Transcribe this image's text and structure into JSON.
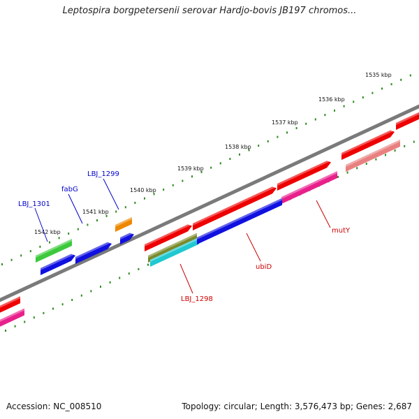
{
  "title": "Leptospira borgpetersenii serovar Hardjo-bovis JB197 chromos...",
  "footer": {
    "accession": "Accession: NC_008510",
    "summary": "Topology: circular; Length: 3,576,473 bp; Genes: 2,687"
  },
  "ruler": {
    "labels": [
      "1535 kbp",
      "1536 kbp",
      "1537 kbp",
      "1538 kbp",
      "1539 kbp",
      "1540 kbp",
      "1541 kbp",
      "1542 kbp"
    ]
  },
  "genes": {
    "upper": [
      "LBJ_1299",
      "fabG",
      "LBJ_1301"
    ],
    "lower": [
      "mutY",
      "ubiD",
      "LBJ_1298"
    ]
  },
  "colors": {
    "backbone": "#7a7a7a",
    "tick": "#2e8b1f",
    "red": "#ee0000",
    "pink": "#e8208c",
    "salmon": "#e98080",
    "blue": "#1010e0",
    "green": "#3cc93c",
    "orange": "#ee8800",
    "olive": "#7a8a2a",
    "cyan": "#20c8d0",
    "label_blue": "#0000cc",
    "label_red": "#cc0000"
  }
}
